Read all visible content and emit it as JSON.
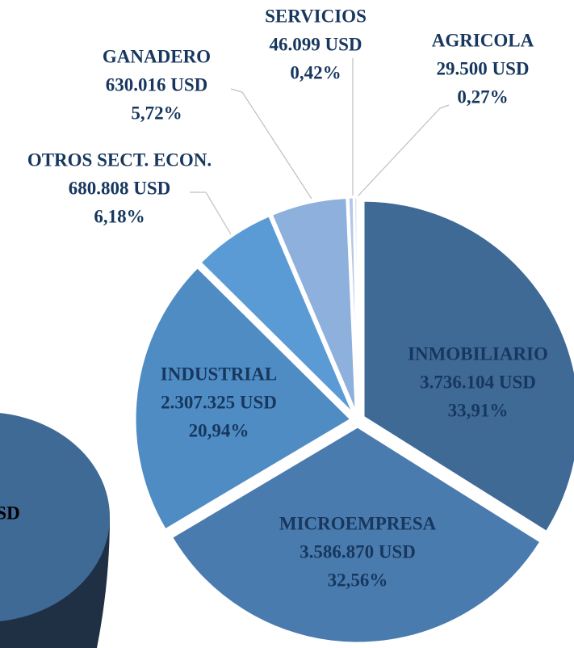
{
  "chart_data": {
    "type": "pie",
    "categories": [
      "INMOBILIARIO",
      "MICROEMPRESA",
      "INDUSTRIAL",
      "OTROS SECT. ECON.",
      "GANADERO",
      "SERVICIOS",
      "AGRICOLA"
    ],
    "values": [
      3736104,
      3586870,
      2307325,
      680808,
      630016,
      46099,
      29500
    ],
    "value_labels": [
      "3.736.104  USD",
      "3.586.870  USD",
      "2.307.325  USD",
      "680.808  USD",
      "630.016  USD",
      "46.099  USD",
      "29.500  USD"
    ],
    "percentages": [
      33.91,
      32.56,
      20.94,
      6.18,
      5.72,
      0.42,
      0.27
    ],
    "percent_labels": [
      "33,91%",
      "32,56%",
      "20,94%",
      "6,18%",
      "5,72%",
      "0,42%",
      "0,27%"
    ],
    "colors": [
      "#3f6a96",
      "#4a7bae",
      "#4f8cc4",
      "#5b9bd5",
      "#8db0dc",
      "#b4c7e7",
      "#dae3f3"
    ]
  },
  "left_fragment": {
    "label": "SD"
  }
}
